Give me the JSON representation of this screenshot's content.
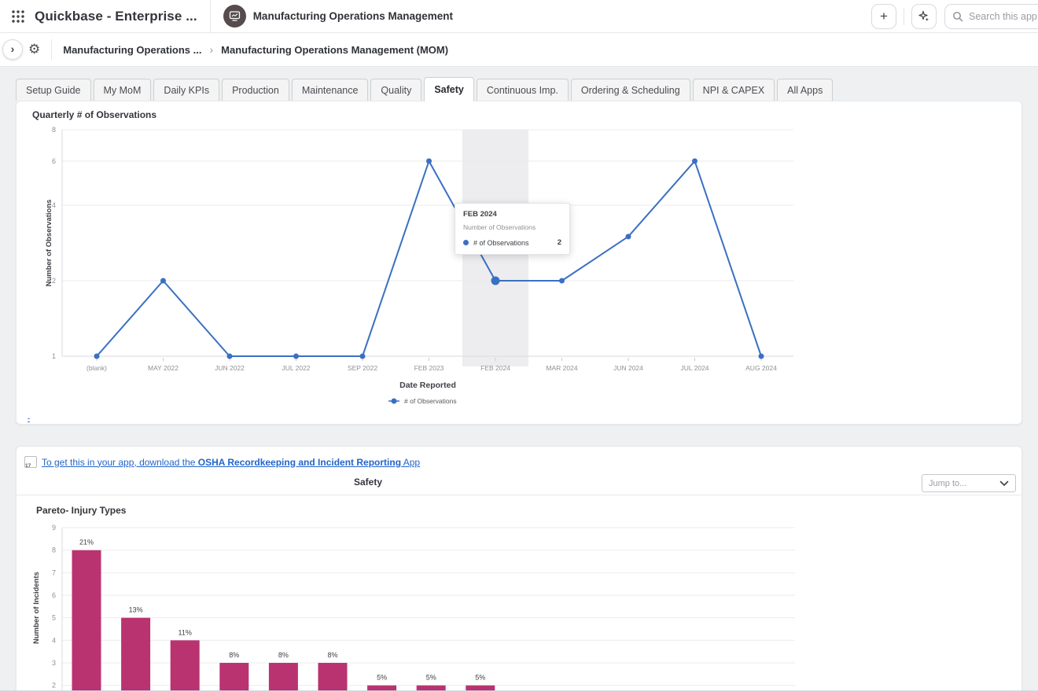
{
  "topbar": {
    "product_title": "Quickbase - Enterprise ...",
    "app_tab_label": "Manufacturing Operations Management",
    "search_placeholder": "Search this app"
  },
  "glyphs": {
    "plus": "+",
    "gear": "⚙",
    "expand_chevron": "›",
    "breadcrumb_sep": "›"
  },
  "toolbar": {
    "breadcrumb_parent": "Manufacturing Operations ...",
    "breadcrumb_current": "Manufacturing Operations Management (MOM)"
  },
  "tabs": {
    "items": [
      "Setup Guide",
      "My MoM",
      "Daily KPIs",
      "Production",
      "Maintenance",
      "Quality",
      "Safety",
      "Continuous Imp.",
      "Ordering & Scheduling",
      "NPI & CAPEX",
      "All Apps"
    ],
    "active": "Safety"
  },
  "observations_card": {
    "title": "Quarterly # of Observations",
    "tooltip": {
      "title": "FEB 2024",
      "subtitle": "Number of Observations",
      "series": "# of Observations",
      "value": "2"
    },
    "footer_link": "-"
  },
  "osha_card": {
    "link_prefix": "To get this in your app, download the ",
    "link_bold": "OSHA Recordkeeping and Incident Reporting",
    "link_suffix": " App",
    "calendar_icon_day": "17",
    "section_title": "Safety",
    "jump_to_placeholder": "Jump to...",
    "pareto_title": "Pareto- Injury Types"
  },
  "chart_data": [
    {
      "type": "line",
      "title": "Quarterly # of Observations",
      "categories": [
        "(blank)",
        "MAY 2022",
        "JUN 2022",
        "JUL 2022",
        "SEP 2022",
        "FEB 2023",
        "FEB 2024",
        "MAR 2024",
        "JUN 2024",
        "JUL 2024",
        "AUG 2024"
      ],
      "values": [
        1,
        2,
        1,
        1,
        1,
        6,
        2,
        2,
        3,
        6,
        1
      ],
      "xlabel": "Date Reported",
      "ylabel": "Number of Observations",
      "legend": "# of Observations",
      "y_ticks": [
        1,
        2,
        4,
        6,
        8
      ],
      "y_scale": "log2",
      "ylim": [
        1,
        8
      ],
      "highlighted_category": "FEB 2024",
      "line_color": "#3a70c2",
      "grid": true,
      "legend_position": "bottom"
    },
    {
      "type": "bar",
      "title": "Pareto- Injury Types",
      "values": [
        8,
        5,
        4,
        3,
        3,
        3,
        2,
        2,
        2
      ],
      "labels": [
        "21%",
        "13%",
        "11%",
        "8%",
        "8%",
        "8%",
        "5%",
        "5%",
        "5%"
      ],
      "ylabel": "Number of Incidents",
      "y_ticks": [
        9,
        8,
        7,
        6,
        5,
        4,
        3,
        2
      ],
      "ylim": [
        0,
        9
      ],
      "bar_color": "#b93370",
      "grid": true
    }
  ]
}
